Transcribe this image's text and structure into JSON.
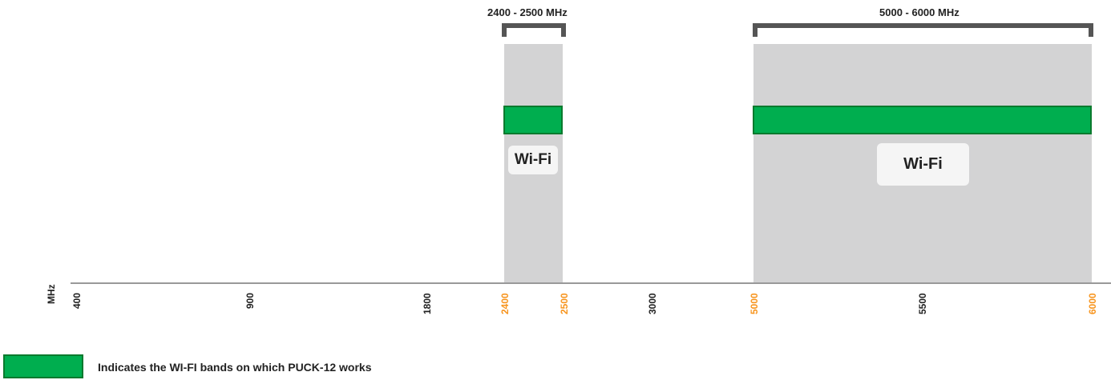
{
  "ranges": [
    {
      "label": "2400 - 2500 MHz",
      "band_label": "Wi-Fi"
    },
    {
      "label": "5000 - 6000 MHz",
      "band_label": "Wi-Fi"
    }
  ],
  "axis": {
    "unit": "MHz",
    "ticks": [
      {
        "label": "400",
        "highlight": false
      },
      {
        "label": "900",
        "highlight": false
      },
      {
        "label": "1800",
        "highlight": false
      },
      {
        "label": "2400",
        "highlight": true
      },
      {
        "label": "2500",
        "highlight": true
      },
      {
        "label": "3000",
        "highlight": false
      },
      {
        "label": "5000",
        "highlight": true
      },
      {
        "label": "5500",
        "highlight": false
      },
      {
        "label": "6000",
        "highlight": true
      }
    ]
  },
  "legend": {
    "text": "Indicates the WI-FI bands on which PUCK-12 works"
  },
  "colors": {
    "band_bg": "#d3d3d4",
    "active_band": "#00ae4f",
    "highlight_tick": "#f7941d",
    "bracket": "#555555"
  }
}
